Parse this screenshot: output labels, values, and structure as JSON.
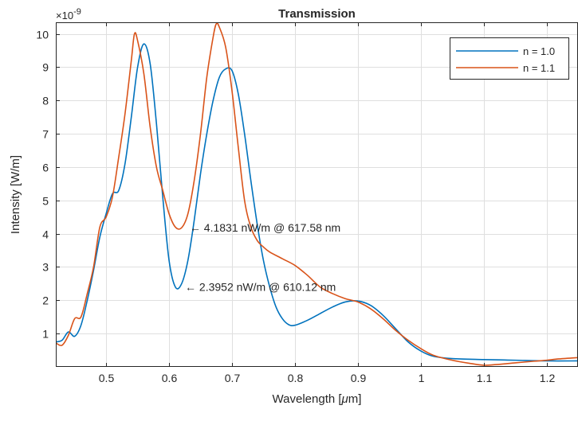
{
  "chart_data": {
    "type": "line",
    "title": "Transmission",
    "xlabel": "Wavelength [μm]",
    "ylabel": "Intensity [W/m]",
    "y_exponent_label": "×10",
    "y_exponent_power": "-9",
    "xlim": [
      0.42,
      1.25
    ],
    "ylim": [
      0,
      10.35
    ],
    "xticks": [
      0.5,
      0.6,
      0.7,
      0.8,
      0.9,
      1.0,
      1.1,
      1.2
    ],
    "xtick_labels": [
      "0.5",
      "0.6",
      "0.7",
      "0.8",
      "0.9",
      "1",
      "1.1",
      "1.2"
    ],
    "yticks": [
      1,
      2,
      3,
      4,
      5,
      6,
      7,
      8,
      9,
      10
    ],
    "ytick_labels": [
      "1",
      "2",
      "3",
      "4",
      "5",
      "6",
      "7",
      "8",
      "9",
      "10"
    ],
    "grid": true,
    "legend_position": "top-right",
    "series": [
      {
        "name": "n = 1.0",
        "color": "#0072BD",
        "x": [
          0.42,
          0.43,
          0.44,
          0.45,
          0.46,
          0.47,
          0.48,
          0.49,
          0.5,
          0.51,
          0.52,
          0.53,
          0.54,
          0.55,
          0.56,
          0.57,
          0.58,
          0.59,
          0.6,
          0.61,
          0.62,
          0.63,
          0.64,
          0.65,
          0.66,
          0.67,
          0.68,
          0.69,
          0.7,
          0.71,
          0.72,
          0.73,
          0.74,
          0.75,
          0.76,
          0.77,
          0.78,
          0.79,
          0.8,
          0.82,
          0.84,
          0.86,
          0.88,
          0.9,
          0.92,
          0.94,
          0.96,
          0.98,
          1.0,
          1.02,
          1.05,
          1.1,
          1.15,
          1.2,
          1.25
        ],
        "y": [
          0.75,
          0.8,
          1.05,
          0.92,
          1.25,
          2.0,
          2.9,
          3.9,
          4.6,
          5.2,
          5.3,
          6.1,
          7.5,
          9.0,
          9.7,
          9.1,
          7.3,
          5.1,
          3.2,
          2.4,
          2.5,
          3.2,
          4.4,
          5.8,
          7.0,
          8.0,
          8.7,
          8.95,
          8.9,
          8.2,
          7.0,
          5.6,
          4.3,
          3.2,
          2.4,
          1.8,
          1.45,
          1.27,
          1.25,
          1.4,
          1.6,
          1.8,
          1.95,
          1.98,
          1.85,
          1.55,
          1.15,
          0.75,
          0.48,
          0.32,
          0.25,
          0.22,
          0.2,
          0.18,
          0.18
        ]
      },
      {
        "name": "n = 1.1",
        "color": "#D95319",
        "x": [
          0.42,
          0.43,
          0.44,
          0.45,
          0.46,
          0.47,
          0.48,
          0.49,
          0.5,
          0.51,
          0.52,
          0.53,
          0.54,
          0.545,
          0.55,
          0.56,
          0.57,
          0.58,
          0.59,
          0.6,
          0.61,
          0.62,
          0.63,
          0.64,
          0.65,
          0.66,
          0.67,
          0.675,
          0.68,
          0.69,
          0.7,
          0.71,
          0.72,
          0.73,
          0.74,
          0.75,
          0.76,
          0.78,
          0.8,
          0.82,
          0.84,
          0.86,
          0.88,
          0.9,
          0.92,
          0.94,
          0.96,
          0.98,
          1.0,
          1.02,
          1.05,
          1.08,
          1.1,
          1.12,
          1.15,
          1.18,
          1.2,
          1.22,
          1.25
        ],
        "y": [
          0.72,
          0.65,
          0.95,
          1.45,
          1.5,
          2.2,
          3.0,
          4.2,
          4.5,
          5.1,
          6.3,
          7.6,
          9.2,
          10.0,
          9.8,
          8.8,
          7.2,
          6.0,
          5.3,
          4.6,
          4.2,
          4.18,
          4.6,
          5.6,
          7.0,
          8.7,
          9.9,
          10.3,
          10.2,
          9.6,
          8.3,
          6.6,
          5.0,
          4.2,
          3.8,
          3.6,
          3.45,
          3.25,
          3.05,
          2.75,
          2.4,
          2.2,
          2.05,
          1.95,
          1.75,
          1.45,
          1.1,
          0.8,
          0.55,
          0.35,
          0.2,
          0.1,
          0.05,
          0.07,
          0.12,
          0.17,
          0.2,
          0.24,
          0.28
        ]
      }
    ],
    "annotations": [
      {
        "text": "← 4.1831 nW/m @ 617.58 nm",
        "x": 0.6176,
        "y": 4.18
      },
      {
        "text": "← 2.3952 nW/m @ 610.12 nm",
        "x": 0.6101,
        "y": 2.4
      }
    ]
  }
}
